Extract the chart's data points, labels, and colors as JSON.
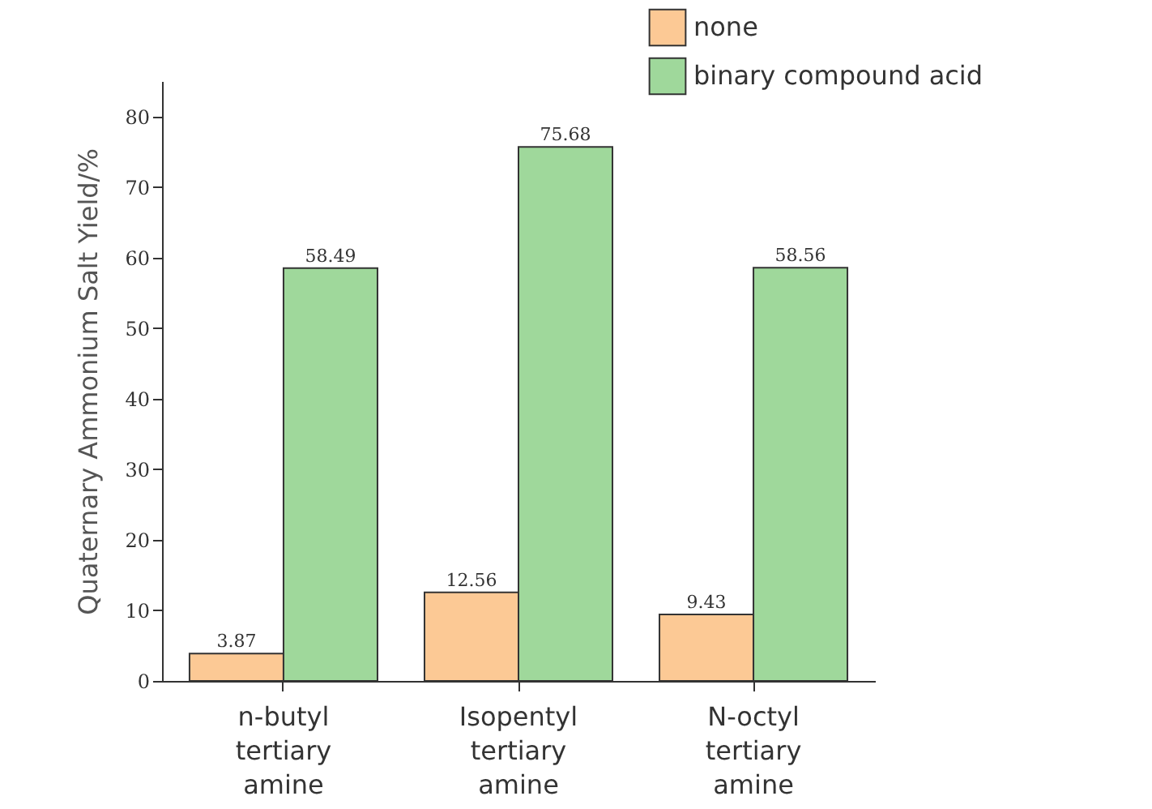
{
  "chart_data": {
    "type": "bar",
    "ylabel": "Quaternary Ammonium Salt Yield/%",
    "categories": [
      "n-butyl tertiary amine",
      "Isopentyl tertiary amine",
      "N-octyl tertiary amine"
    ],
    "series": [
      {
        "name": "none",
        "color": "#fcc995",
        "values": [
          3.87,
          12.56,
          9.43
        ]
      },
      {
        "name": "binary compound acid",
        "color": "#9fd89b",
        "values": [
          58.49,
          75.68,
          58.56
        ]
      }
    ],
    "ylim": [
      0,
      85
    ],
    "yticks": [
      0,
      10,
      20,
      30,
      40,
      50,
      60,
      70,
      80
    ],
    "grid": false,
    "legend": "top right",
    "data_labels": true
  }
}
